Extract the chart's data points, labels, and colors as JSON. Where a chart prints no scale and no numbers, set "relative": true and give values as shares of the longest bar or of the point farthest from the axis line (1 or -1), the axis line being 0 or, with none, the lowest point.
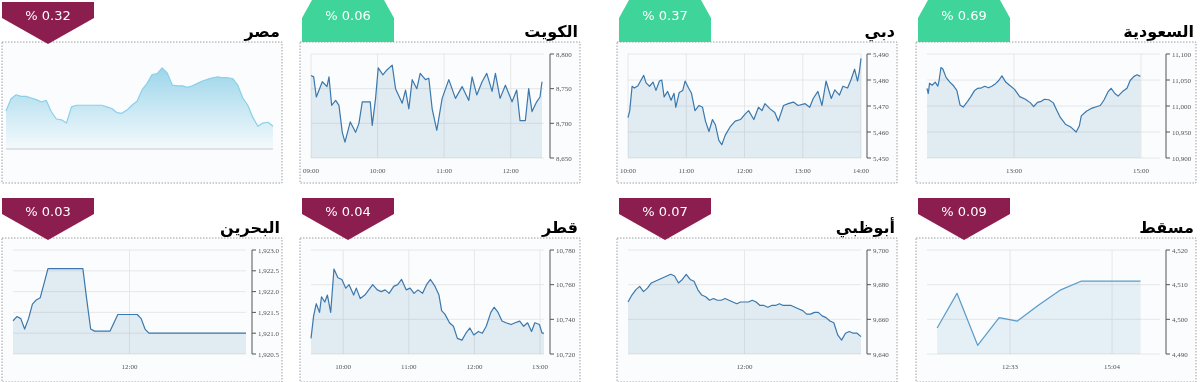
{
  "chart_data": [
    {
      "type": "area",
      "title": "مصر",
      "annotations": [
        "% 0.32"
      ],
      "relative": true,
      "color": "#8ccfe8",
      "categories": [
        null,
        null,
        null,
        null,
        null,
        null,
        null,
        null,
        null,
        null,
        null,
        null,
        null,
        null,
        null,
        null,
        null,
        null,
        null,
        null,
        null,
        null,
        null,
        null,
        null,
        null,
        null,
        null,
        null,
        null,
        null,
        null,
        null,
        null,
        null,
        null,
        null,
        null,
        null,
        null,
        null,
        null,
        null,
        null,
        null,
        null,
        null,
        null,
        null,
        null,
        null,
        null,
        null,
        null
      ],
      "values": [
        0.47,
        0.62,
        0.67,
        0.65,
        0.65,
        0.63,
        0.61,
        0.58,
        0.6,
        0.46,
        0.37,
        0.36,
        0.32,
        0.52,
        0.54,
        0.54,
        0.54,
        0.54,
        0.54,
        0.54,
        0.52,
        0.5,
        0.45,
        0.44,
        0.48,
        0.54,
        0.59,
        0.73,
        0.81,
        0.92,
        0.93,
        1,
        0.94,
        0.79,
        0.78,
        0.78,
        0.76,
        0.78,
        0.81,
        0.84,
        0.86,
        0.88,
        0.89,
        0.88,
        0.88,
        0.87,
        0.79,
        0.63,
        0.54,
        0.39,
        0.28,
        0.32,
        0.33,
        0.28
      ]
    },
    {
      "type": "area",
      "title": "الكويت",
      "annotations": [
        "% 0.06"
      ],
      "color": "#3a78ad",
      "grid": true,
      "x": [
        9.0,
        9.04,
        9.08,
        9.17,
        9.24,
        9.27,
        9.31,
        9.37,
        9.42,
        9.47,
        9.51,
        9.59,
        9.67,
        9.72,
        9.77,
        9.89,
        9.92,
        9.97,
        10.01,
        10.08,
        10.14,
        10.22,
        10.27,
        10.37,
        10.42,
        10.47,
        10.52,
        10.59,
        10.64,
        10.72,
        10.77,
        10.82,
        10.89,
        10.97,
        11.07,
        11.17,
        11.27,
        11.37,
        11.42,
        11.49,
        11.57,
        11.64,
        11.72,
        11.77,
        11.84,
        11.92,
        12.02,
        12.09,
        12.14,
        12.22,
        12.27,
        12.32,
        12.39,
        12.44,
        12.47
      ],
      "values": [
        8769,
        8767,
        8738,
        8760,
        8753,
        8767,
        8726,
        8733,
        8726,
        8687,
        8673,
        8702,
        8687,
        8700,
        8731,
        8731,
        8697,
        8736,
        8780,
        8770,
        8777,
        8784,
        8750,
        8729,
        8748,
        8721,
        8763,
        8750,
        8772,
        8763,
        8765,
        8721,
        8690,
        8736,
        8763,
        8736,
        8753,
        8733,
        8767,
        8741,
        8760,
        8772,
        8746,
        8772,
        8736,
        8755,
        8731,
        8748,
        8704,
        8704,
        8750,
        8717,
        8731,
        8738,
        8760
      ],
      "xlim": [
        9,
        12.5
      ],
      "xticks": [
        {
          "value": 9,
          "label": "09:00"
        },
        {
          "value": 10,
          "label": "10:00"
        },
        {
          "value": 11,
          "label": "11:00"
        },
        {
          "value": 12,
          "label": "12:00"
        }
      ],
      "ylim": [
        8650,
        8800
      ],
      "yticks": [
        {
          "value": 8650,
          "label": "8,650"
        },
        {
          "value": 8700,
          "label": "8,700"
        },
        {
          "value": 8750,
          "label": "8,750"
        },
        {
          "value": 8800,
          "label": "8,800"
        }
      ]
    },
    {
      "type": "area",
      "title": "دبي",
      "annotations": [
        "% 0.37"
      ],
      "color": "#3a78ad",
      "grid": true,
      "x": [
        10.0,
        10.03,
        10.07,
        10.11,
        10.17,
        10.23,
        10.27,
        10.31,
        10.37,
        10.43,
        10.48,
        10.54,
        10.58,
        10.62,
        10.68,
        10.74,
        10.79,
        10.82,
        10.88,
        10.94,
        10.98,
        11.04,
        11.09,
        11.15,
        11.22,
        11.28,
        11.33,
        11.39,
        11.45,
        11.5,
        11.56,
        11.61,
        11.67,
        11.76,
        11.84,
        11.93,
        12.01,
        12.07,
        12.16,
        12.24,
        12.3,
        12.35,
        12.44,
        12.52,
        12.58,
        12.67,
        12.75,
        12.84,
        12.92,
        13.04,
        13.12,
        13.18,
        13.26,
        13.33,
        13.4,
        13.49,
        13.55,
        13.63,
        13.69,
        13.77,
        13.83,
        13.89,
        13.94,
        13.97,
        14.0
      ],
      "values": [
        5465.5,
        5468.2,
        5477.6,
        5476.9,
        5477.8,
        5480.2,
        5481.8,
        5478.9,
        5477.6,
        5479.2,
        5476.0,
        5479.6,
        5480.0,
        5473.5,
        5475.6,
        5472.2,
        5474.9,
        5469.5,
        5475.2,
        5476.0,
        5479.6,
        5476.9,
        5474.9,
        5468.2,
        5470.2,
        5469.5,
        5464.2,
        5460.2,
        5464.8,
        5462.8,
        5456.8,
        5455.1,
        5458.8,
        5462.2,
        5464.2,
        5464.8,
        5466.9,
        5468.2,
        5464.8,
        5469.5,
        5468.2,
        5470.9,
        5468.9,
        5467.5,
        5464.2,
        5470.2,
        5470.9,
        5471.5,
        5470.2,
        5470.9,
        5469.5,
        5472.9,
        5475.6,
        5470.2,
        5479.6,
        5472.9,
        5476.2,
        5474.2,
        5477.6,
        5476.9,
        5480.2,
        5484.2,
        5479.6,
        5482.9,
        5488.3
      ],
      "xlim": [
        10,
        14
      ],
      "xticks": [
        {
          "value": 10,
          "label": "10:00"
        },
        {
          "value": 11,
          "label": "11:00"
        },
        {
          "value": 12,
          "label": "12:00"
        },
        {
          "value": 13,
          "label": "13:00"
        },
        {
          "value": 14,
          "label": "14:00"
        }
      ],
      "ylim": [
        5450,
        5490
      ],
      "yticks": [
        {
          "value": 5450,
          "label": "5,450"
        },
        {
          "value": 5460,
          "label": "5,460"
        },
        {
          "value": 5470,
          "label": "5,470"
        },
        {
          "value": 5480,
          "label": "5,480"
        },
        {
          "value": 5490,
          "label": "5,490"
        }
      ]
    },
    {
      "type": "area",
      "title": "السعودية",
      "annotations": [
        "% 0.69"
      ],
      "color": "#3a78ad",
      "grid": true,
      "x": [
        11.63,
        11.65,
        11.67,
        11.71,
        11.76,
        11.8,
        11.82,
        11.85,
        11.88,
        11.93,
        11.99,
        12.04,
        12.1,
        12.15,
        12.2,
        12.27,
        12.32,
        12.38,
        12.43,
        12.49,
        12.54,
        12.6,
        12.65,
        12.71,
        12.76,
        12.81,
        12.87,
        12.93,
        13.01,
        13.09,
        13.18,
        13.26,
        13.31,
        13.37,
        13.43,
        13.48,
        13.55,
        13.62,
        13.67,
        13.73,
        13.81,
        13.9,
        13.98,
        14.03,
        14.06,
        14.14,
        14.23,
        14.31,
        14.36,
        14.42,
        14.48,
        14.53,
        14.59,
        14.64,
        14.72,
        14.78,
        14.83,
        14.89,
        14.94,
        14.99
      ],
      "values": [
        11034,
        11024,
        11044,
        11040,
        11046,
        11038,
        11049,
        11074,
        11071,
        11055,
        11046,
        11040,
        11030,
        11002,
        10998,
        11009,
        11018,
        11030,
        11034,
        11035,
        11038,
        11035,
        11038,
        11043,
        11049,
        11058,
        11046,
        11040,
        11032,
        11018,
        11013,
        11006,
        10999,
        11007,
        11009,
        11013,
        11012,
        11006,
        10993,
        10978,
        10965,
        10959,
        10950,
        10962,
        10981,
        10990,
        10996,
        10999,
        11001,
        11012,
        11027,
        11034,
        11024,
        11019,
        11029,
        11034,
        11049,
        11057,
        11060,
        11057
      ],
      "xlim": [
        11.63,
        15.3
      ],
      "xticks": [
        {
          "value": 13,
          "label": "13:00"
        },
        {
          "value": 15,
          "label": "15:00"
        }
      ],
      "ylim": [
        10900,
        11100
      ],
      "yticks": [
        {
          "value": 10900,
          "label": "10,900"
        },
        {
          "value": 10950,
          "label": "10,950"
        },
        {
          "value": 11000,
          "label": "11,000"
        },
        {
          "value": 11050,
          "label": "11,050"
        },
        {
          "value": 11100,
          "label": "11,100"
        }
      ]
    },
    {
      "type": "area",
      "title": "البحرين",
      "annotations": [
        "% 0.03"
      ],
      "color": "#3a78ad",
      "grid": true,
      "categories": [
        null,
        null,
        null,
        null,
        null,
        null,
        null,
        null,
        null,
        null,
        null,
        null,
        null,
        null,
        null,
        null,
        null,
        null,
        null,
        null,
        null,
        null,
        null,
        null,
        null,
        null,
        null,
        null,
        null,
        null,
        "12:00",
        null,
        null,
        null,
        null,
        null,
        null,
        null,
        null,
        null,
        null,
        null,
        null,
        null,
        null,
        null,
        null,
        null,
        null,
        null,
        null,
        null,
        null,
        null,
        null,
        null,
        null,
        null,
        null,
        null,
        null
      ],
      "values": [
        1921.3,
        1921.4,
        1921.35,
        1921.1,
        1921.35,
        1921.7,
        1921.8,
        1921.85,
        1922.2,
        1922.55,
        1922.55,
        1922.55,
        1922.55,
        1922.55,
        1922.55,
        1922.55,
        1922.55,
        1922.55,
        1922.55,
        1921.8,
        1921.1,
        1921.05,
        1921.05,
        1921.05,
        1921.05,
        1921.05,
        1921.25,
        1921.45,
        1921.45,
        1921.45,
        1921.45,
        1921.45,
        1921.45,
        1921.35,
        1921.1,
        1921.0,
        1921.0,
        1921.0,
        1921.0,
        1921.0,
        1921.0,
        1921.0,
        1921.0,
        1921.0,
        1921.0,
        1921.0,
        1921.0,
        1921.0,
        1921.0,
        1921.0,
        1921.0,
        1921.0,
        1921.0,
        1921.0,
        1921.0,
        1921.0,
        1921.0,
        1921.0,
        1921.0,
        1921.0,
        1921.0
      ],
      "ylim": [
        1920.5,
        1923.0
      ],
      "yticks": [
        {
          "value": 1920.5,
          "label": "1,920.5"
        },
        {
          "value": 1921.0,
          "label": "1,921.0"
        },
        {
          "value": 1921.5,
          "label": "1,921.5"
        },
        {
          "value": 1922.0,
          "label": "1,922.0"
        },
        {
          "value": 1922.5,
          "label": "1,922.5"
        },
        {
          "value": 1923.0,
          "label": "1,923.0"
        }
      ]
    },
    {
      "type": "area",
      "title": "قطر",
      "annotations": [
        "% 0.04"
      ],
      "color": "#3a78ad",
      "grid": true,
      "x": [
        9.51,
        9.55,
        9.59,
        9.64,
        9.67,
        9.72,
        9.76,
        9.81,
        9.86,
        9.92,
        9.98,
        10.04,
        10.09,
        10.16,
        10.2,
        10.26,
        10.33,
        10.39,
        10.45,
        10.52,
        10.58,
        10.64,
        10.7,
        10.77,
        10.83,
        10.89,
        10.96,
        11.02,
        11.08,
        11.14,
        11.21,
        11.27,
        11.33,
        11.4,
        11.46,
        11.5,
        11.55,
        11.62,
        11.68,
        11.74,
        11.81,
        11.87,
        11.93,
        11.99,
        12.06,
        12.12,
        12.18,
        12.25,
        12.3,
        12.36,
        12.42,
        12.48,
        12.56,
        12.62,
        12.69,
        12.75,
        12.81,
        12.87,
        12.92,
        12.99,
        13.03,
        13.06
      ],
      "values": [
        10729,
        10742,
        10749,
        10744,
        10753,
        10750,
        10754,
        10744,
        10769,
        10764,
        10763,
        10758,
        10760,
        10754,
        10758,
        10752,
        10754,
        10757,
        10760,
        10757,
        10756,
        10757,
        10755,
        10759,
        10760,
        10763,
        10757,
        10758,
        10755,
        10757,
        10755,
        10760,
        10763,
        10759,
        10754,
        10745,
        10743,
        10738,
        10736,
        10729,
        10728,
        10732,
        10735,
        10731,
        10733,
        10732,
        10736,
        10744,
        10747,
        10744,
        10739,
        10738,
        10737,
        10738,
        10739,
        10736,
        10738,
        10733,
        10738,
        10737,
        10732,
        10732
      ],
      "xlim": [
        9.51,
        13.06
      ],
      "xticks": [
        {
          "value": 10,
          "label": "10:00"
        },
        {
          "value": 11,
          "label": "11:00"
        },
        {
          "value": 12,
          "label": "12:00"
        },
        {
          "value": 13,
          "label": "13:00"
        }
      ],
      "ylim": [
        10720,
        10780
      ],
      "yticks": [
        {
          "value": 10720,
          "label": "10,720"
        },
        {
          "value": 10740,
          "label": "10,740"
        },
        {
          "value": 10760,
          "label": "10,760"
        },
        {
          "value": 10780,
          "label": "10,780"
        }
      ]
    },
    {
      "type": "area",
      "title": "أبوظبي",
      "annotations": [
        "% 0.07"
      ],
      "color": "#3a78ad",
      "grid": true,
      "categories": [
        null,
        null,
        null,
        null,
        null,
        null,
        null,
        null,
        null,
        null,
        null,
        null,
        null,
        null,
        null,
        null,
        null,
        null,
        null,
        null,
        null,
        null,
        null,
        null,
        null,
        null,
        null,
        null,
        null,
        null,
        "12:00",
        null,
        null,
        null,
        null,
        null,
        null,
        null,
        null,
        null,
        null,
        null,
        null,
        null,
        null,
        null,
        null,
        null,
        null,
        null,
        null,
        null,
        null,
        null,
        null,
        null,
        null,
        null,
        null,
        null,
        null
      ],
      "values": [
        9670,
        9674,
        9677,
        9679,
        9676,
        9678,
        9681,
        9682,
        9683,
        9684,
        9685,
        9686,
        9685,
        9681,
        9683,
        9686,
        9683,
        9682,
        9677,
        9674,
        9673,
        9671,
        9672,
        9671,
        9671,
        9672,
        9671,
        9670,
        9669,
        9670,
        9670,
        9670,
        9671,
        9670,
        9668,
        9668,
        9667,
        9668,
        9668,
        9669,
        9668,
        9668,
        9668,
        9667,
        9666,
        9665,
        9663,
        9663,
        9664,
        9664,
        9662,
        9661,
        9659,
        9658,
        9651,
        9648,
        9652,
        9653,
        9652,
        9652,
        9650
      ],
      "ylim": [
        9640,
        9700
      ],
      "yticks": [
        {
          "value": 9640,
          "label": "9,640"
        },
        {
          "value": 9660,
          "label": "9,660"
        },
        {
          "value": 9680,
          "label": "9,680"
        },
        {
          "value": 9700,
          "label": "9,700"
        }
      ]
    },
    {
      "type": "area",
      "title": "مسقط",
      "annotations": [
        "% 0.09"
      ],
      "color": "#5b9bc8",
      "grid": true,
      "x": [
        10.75,
        11.24,
        11.75,
        12.28,
        12.73,
        13.24,
        13.8,
        14.3,
        15.77
      ],
      "values": [
        4497.5,
        4507.5,
        4492.5,
        4500.5,
        4499.5,
        4504,
        4508.5,
        4511,
        4511
      ],
      "xlim": [
        10.5,
        16.25
      ],
      "xticks": [
        {
          "value": 12.55,
          "label": "12:33"
        },
        {
          "value": 15.0667,
          "label": "15:04"
        }
      ],
      "ylim": [
        4490,
        4520
      ],
      "yticks": [
        {
          "value": 4490,
          "label": "4,490"
        },
        {
          "value": 4500,
          "label": "4,500"
        },
        {
          "value": 4510,
          "label": "4,510"
        },
        {
          "value": 4520,
          "label": "4,520"
        }
      ]
    }
  ]
}
